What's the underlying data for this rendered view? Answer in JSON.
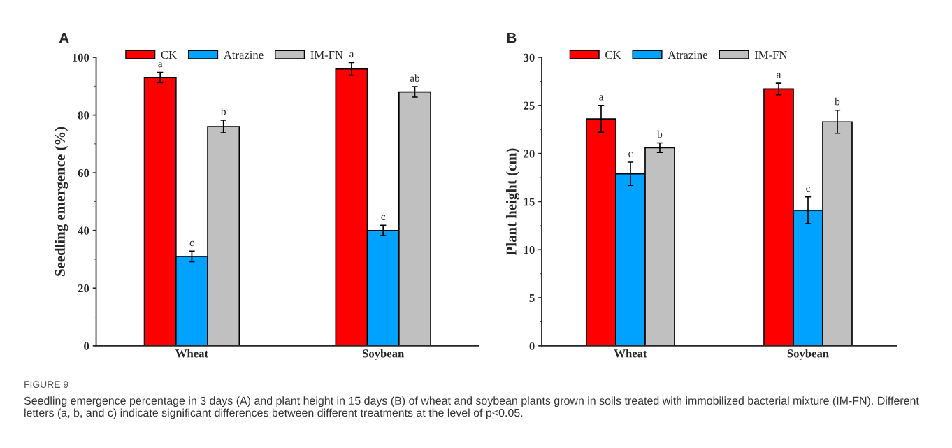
{
  "chart_data": [
    {
      "type": "bar",
      "title": "A",
      "ylabel": "Seedling emergence (%)",
      "categories": [
        "Wheat",
        "Soybean"
      ],
      "ylim": [
        0,
        100
      ],
      "yticks": [
        0,
        20,
        40,
        60,
        80,
        100
      ],
      "grid": false,
      "legend": "top left",
      "series": [
        {
          "name": "CK",
          "color": "#fe0000",
          "values": [
            93,
            96
          ],
          "errors": [
            1.8,
            2.2
          ],
          "value_labels": [
            "a",
            "a"
          ]
        },
        {
          "name": "Atrazine",
          "color": "#00a2ff",
          "values": [
            31,
            40
          ],
          "errors": [
            1.8,
            1.8
          ],
          "value_labels": [
            "c",
            "c"
          ]
        },
        {
          "name": "IM-FN",
          "color": "#c0c0c0",
          "values": [
            76,
            88
          ],
          "errors": [
            2.2,
            1.8
          ],
          "value_labels": [
            "b",
            "ab"
          ]
        }
      ],
      "annotations": [
        "FIGURE 9",
        "Seedling emergence percentage in 3 days (A) and plant height in 15 days (B) of wheat and soybean plants grown in soils treated with immobilized bacterial mixture (IM-FN). Different letters (a, b, and c) indicate significant differences between different treatments at the level of p<0.05."
      ]
    },
    {
      "type": "bar",
      "title": "B",
      "ylabel": "Plant height (cm)",
      "categories": [
        "Wheat",
        "Soybean"
      ],
      "ylim": [
        0,
        30
      ],
      "yticks": [
        0,
        5,
        10,
        15,
        20,
        25,
        30
      ],
      "grid": false,
      "legend": "top left",
      "series": [
        {
          "name": "CK",
          "color": "#fe0000",
          "values": [
            23.6,
            26.7
          ],
          "errors": [
            1.4,
            0.6
          ],
          "value_labels": [
            "a",
            "a"
          ]
        },
        {
          "name": "Atrazine",
          "color": "#00a2ff",
          "values": [
            17.9,
            14.1
          ],
          "errors": [
            1.2,
            1.4
          ],
          "value_labels": [
            "c",
            "c"
          ]
        },
        {
          "name": "IM-FN",
          "color": "#c0c0c0",
          "values": [
            20.6,
            23.3
          ],
          "errors": [
            0.5,
            1.2
          ],
          "value_labels": [
            "b",
            "b"
          ]
        }
      ]
    }
  ]
}
